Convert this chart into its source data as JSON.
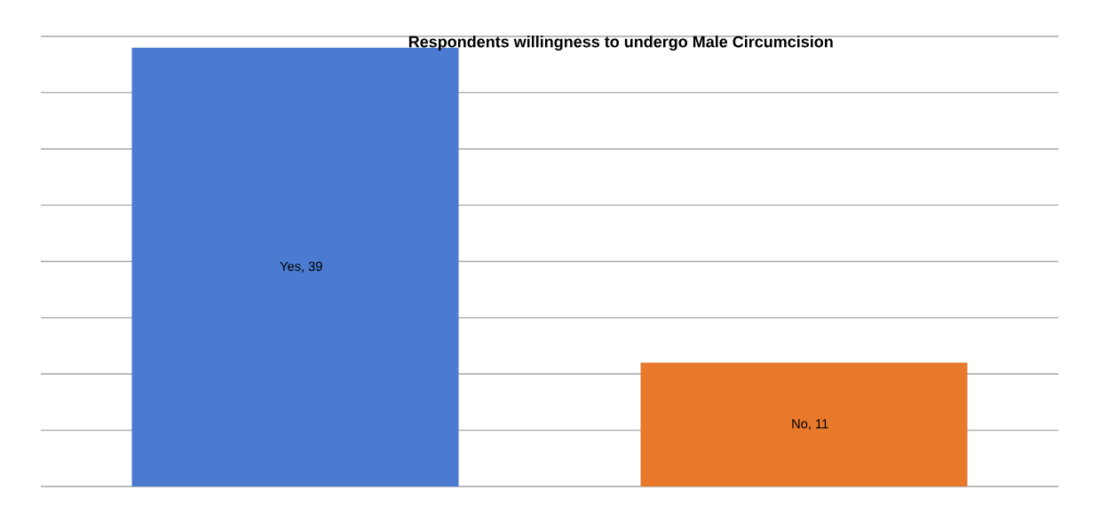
{
  "chart_data": {
    "type": "bar",
    "title": "Respondents willingness to undergo Male Circumcision",
    "categories": [
      null,
      null
    ],
    "values": [
      39,
      11
    ],
    "colors": [
      "#4a7bd0",
      "#e8782a"
    ],
    "value_labels": [
      "Yes, 39",
      "No, 11"
    ],
    "ylim": [
      0,
      40
    ],
    "yticks": [
      {
        "value": 0,
        "label": null
      },
      {
        "value": 5,
        "label": null
      },
      {
        "value": 10,
        "label": null
      },
      {
        "value": 15,
        "label": null
      },
      {
        "value": 20,
        "label": null
      },
      {
        "value": 25,
        "label": null
      },
      {
        "value": 30,
        "label": null
      },
      {
        "value": 35,
        "label": null
      },
      {
        "value": 40,
        "label": null
      }
    ],
    "grid": "y"
  }
}
